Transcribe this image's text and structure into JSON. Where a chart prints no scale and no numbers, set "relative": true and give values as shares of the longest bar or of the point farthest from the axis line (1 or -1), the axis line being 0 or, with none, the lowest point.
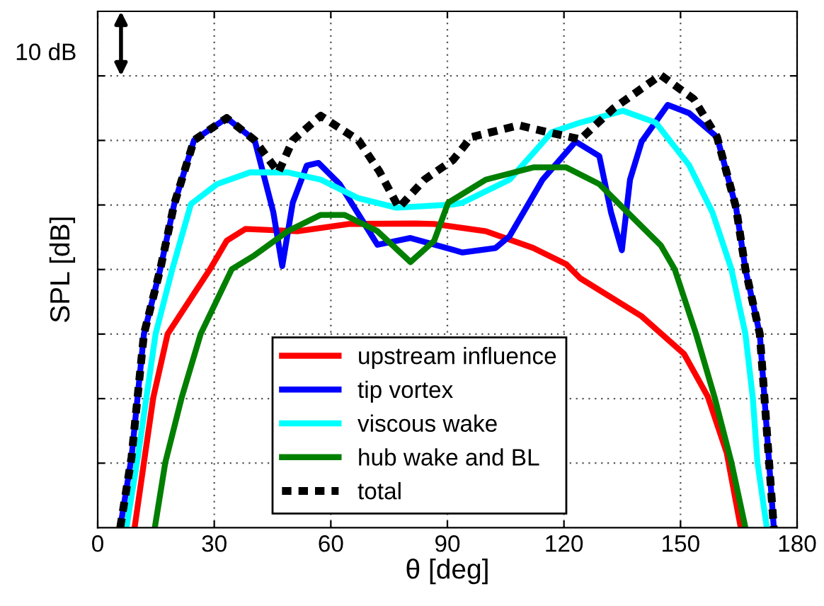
{
  "chart_data": {
    "type": "line",
    "xlabel": "θ [deg]",
    "ylabel": "SPL [dB]",
    "annotations": [
      "10 dB"
    ],
    "relative": true,
    "xlim": [
      0,
      180
    ],
    "xticks": [
      0,
      30,
      60,
      90,
      120,
      150,
      180
    ],
    "grid": true,
    "legend": "bottom",
    "line_style": "solid",
    "series": [
      {
        "name": "upstream influence",
        "color": "#ff0000",
        "x": [
          9.5,
          11.9,
          14.3,
          18.0,
          28.9,
          33.2,
          38.0,
          51.4,
          64.7,
          81.7,
          86.6,
          99.9,
          112.1,
          120.6,
          124.2,
          140,
          150.9,
          157,
          161.9,
          165.5
        ],
        "values": [
          0,
          0.144,
          0.287,
          0.428,
          0.571,
          0.634,
          0.66,
          0.655,
          0.671,
          0.672,
          0.671,
          0.655,
          0.618,
          0.582,
          0.551,
          0.467,
          0.384,
          0.29,
          0.165,
          0
        ]
      },
      {
        "name": "tip vortex",
        "color": "#0000ff",
        "x": [
          5.8,
          8.7,
          11.9,
          16.1,
          19.7,
          24.8,
          33.2,
          40.4,
          45.2,
          47.5,
          50.2,
          53.8,
          56.8,
          62.3,
          72.0,
          80.5,
          91.4,
          93.9,
          102.4,
          106.0,
          114.5,
          123.0,
          129.1,
          132.1,
          134.9,
          137.0,
          140.0,
          146.7,
          152.2,
          159.4,
          164.3,
          166.7,
          170.4,
          171.6,
          174.0
        ],
        "values": [
          0,
          0.155,
          0.428,
          0.571,
          0.715,
          0.856,
          0.905,
          0.856,
          0.697,
          0.578,
          0.718,
          0.8,
          0.806,
          0.759,
          0.625,
          0.64,
          0.614,
          0.608,
          0.618,
          0.644,
          0.769,
          0.853,
          0.821,
          0.697,
          0.613,
          0.769,
          0.853,
          0.934,
          0.916,
          0.863,
          0.707,
          0.571,
          0.428,
          0.287,
          0
        ]
      },
      {
        "name": "viscous wake",
        "color": "#00ffff",
        "x": [
          7.4,
          10.3,
          14.9,
          19.2,
          24.0,
          30.7,
          39.2,
          48.9,
          57.4,
          67.1,
          76.9,
          91.4,
          93.9,
          106.0,
          116.9,
          124.2,
          135.2,
          143.6,
          152.2,
          158.2,
          163.1,
          166.7,
          168.6,
          169.8,
          172.2
        ],
        "values": [
          0,
          0.155,
          0.428,
          0.571,
          0.715,
          0.759,
          0.785,
          0.785,
          0.769,
          0.728,
          0.707,
          0.714,
          0.718,
          0.769,
          0.874,
          0.895,
          0.921,
          0.895,
          0.801,
          0.697,
          0.571,
          0.428,
          0.287,
          0.144,
          0
        ]
      },
      {
        "name": "hub wake and BL",
        "color": "#007f00",
        "x": [
          14.7,
          17.4,
          21.6,
          26.5,
          34.5,
          40.4,
          48.9,
          57.4,
          63.5,
          72.0,
          80.5,
          86.6,
          90.2,
          99.9,
          112.1,
          120.6,
          129.1,
          137.6,
          144.9,
          148.5,
          154,
          158.8,
          163.1,
          166.7
        ],
        "values": [
          0,
          0.144,
          0.287,
          0.428,
          0.571,
          0.602,
          0.655,
          0.691,
          0.691,
          0.655,
          0.587,
          0.634,
          0.718,
          0.769,
          0.796,
          0.796,
          0.759,
          0.686,
          0.624,
          0.571,
          0.428,
          0.287,
          0.144,
          0
        ]
      },
      {
        "name": "total",
        "color": "#000000",
        "line_style": "dashed",
        "x": [
          5.8,
          8.7,
          11.9,
          16.1,
          19.7,
          24.8,
          33.2,
          40.4,
          46.5,
          50.2,
          57.4,
          67.1,
          72.5,
          77.5,
          84.1,
          91.4,
          96.2,
          108.4,
          115.7,
          124.2,
          132.7,
          144.9,
          153.4,
          159.4,
          164.3,
          166.7,
          170.4,
          171.6,
          174.0
        ],
        "values": [
          0,
          0.155,
          0.428,
          0.571,
          0.715,
          0.856,
          0.905,
          0.856,
          0.785,
          0.856,
          0.91,
          0.856,
          0.787,
          0.707,
          0.769,
          0.812,
          0.863,
          0.889,
          0.874,
          0.858,
          0.926,
          1.0,
          0.947,
          0.863,
          0.707,
          0.571,
          0.428,
          0.287,
          0
        ]
      }
    ]
  }
}
